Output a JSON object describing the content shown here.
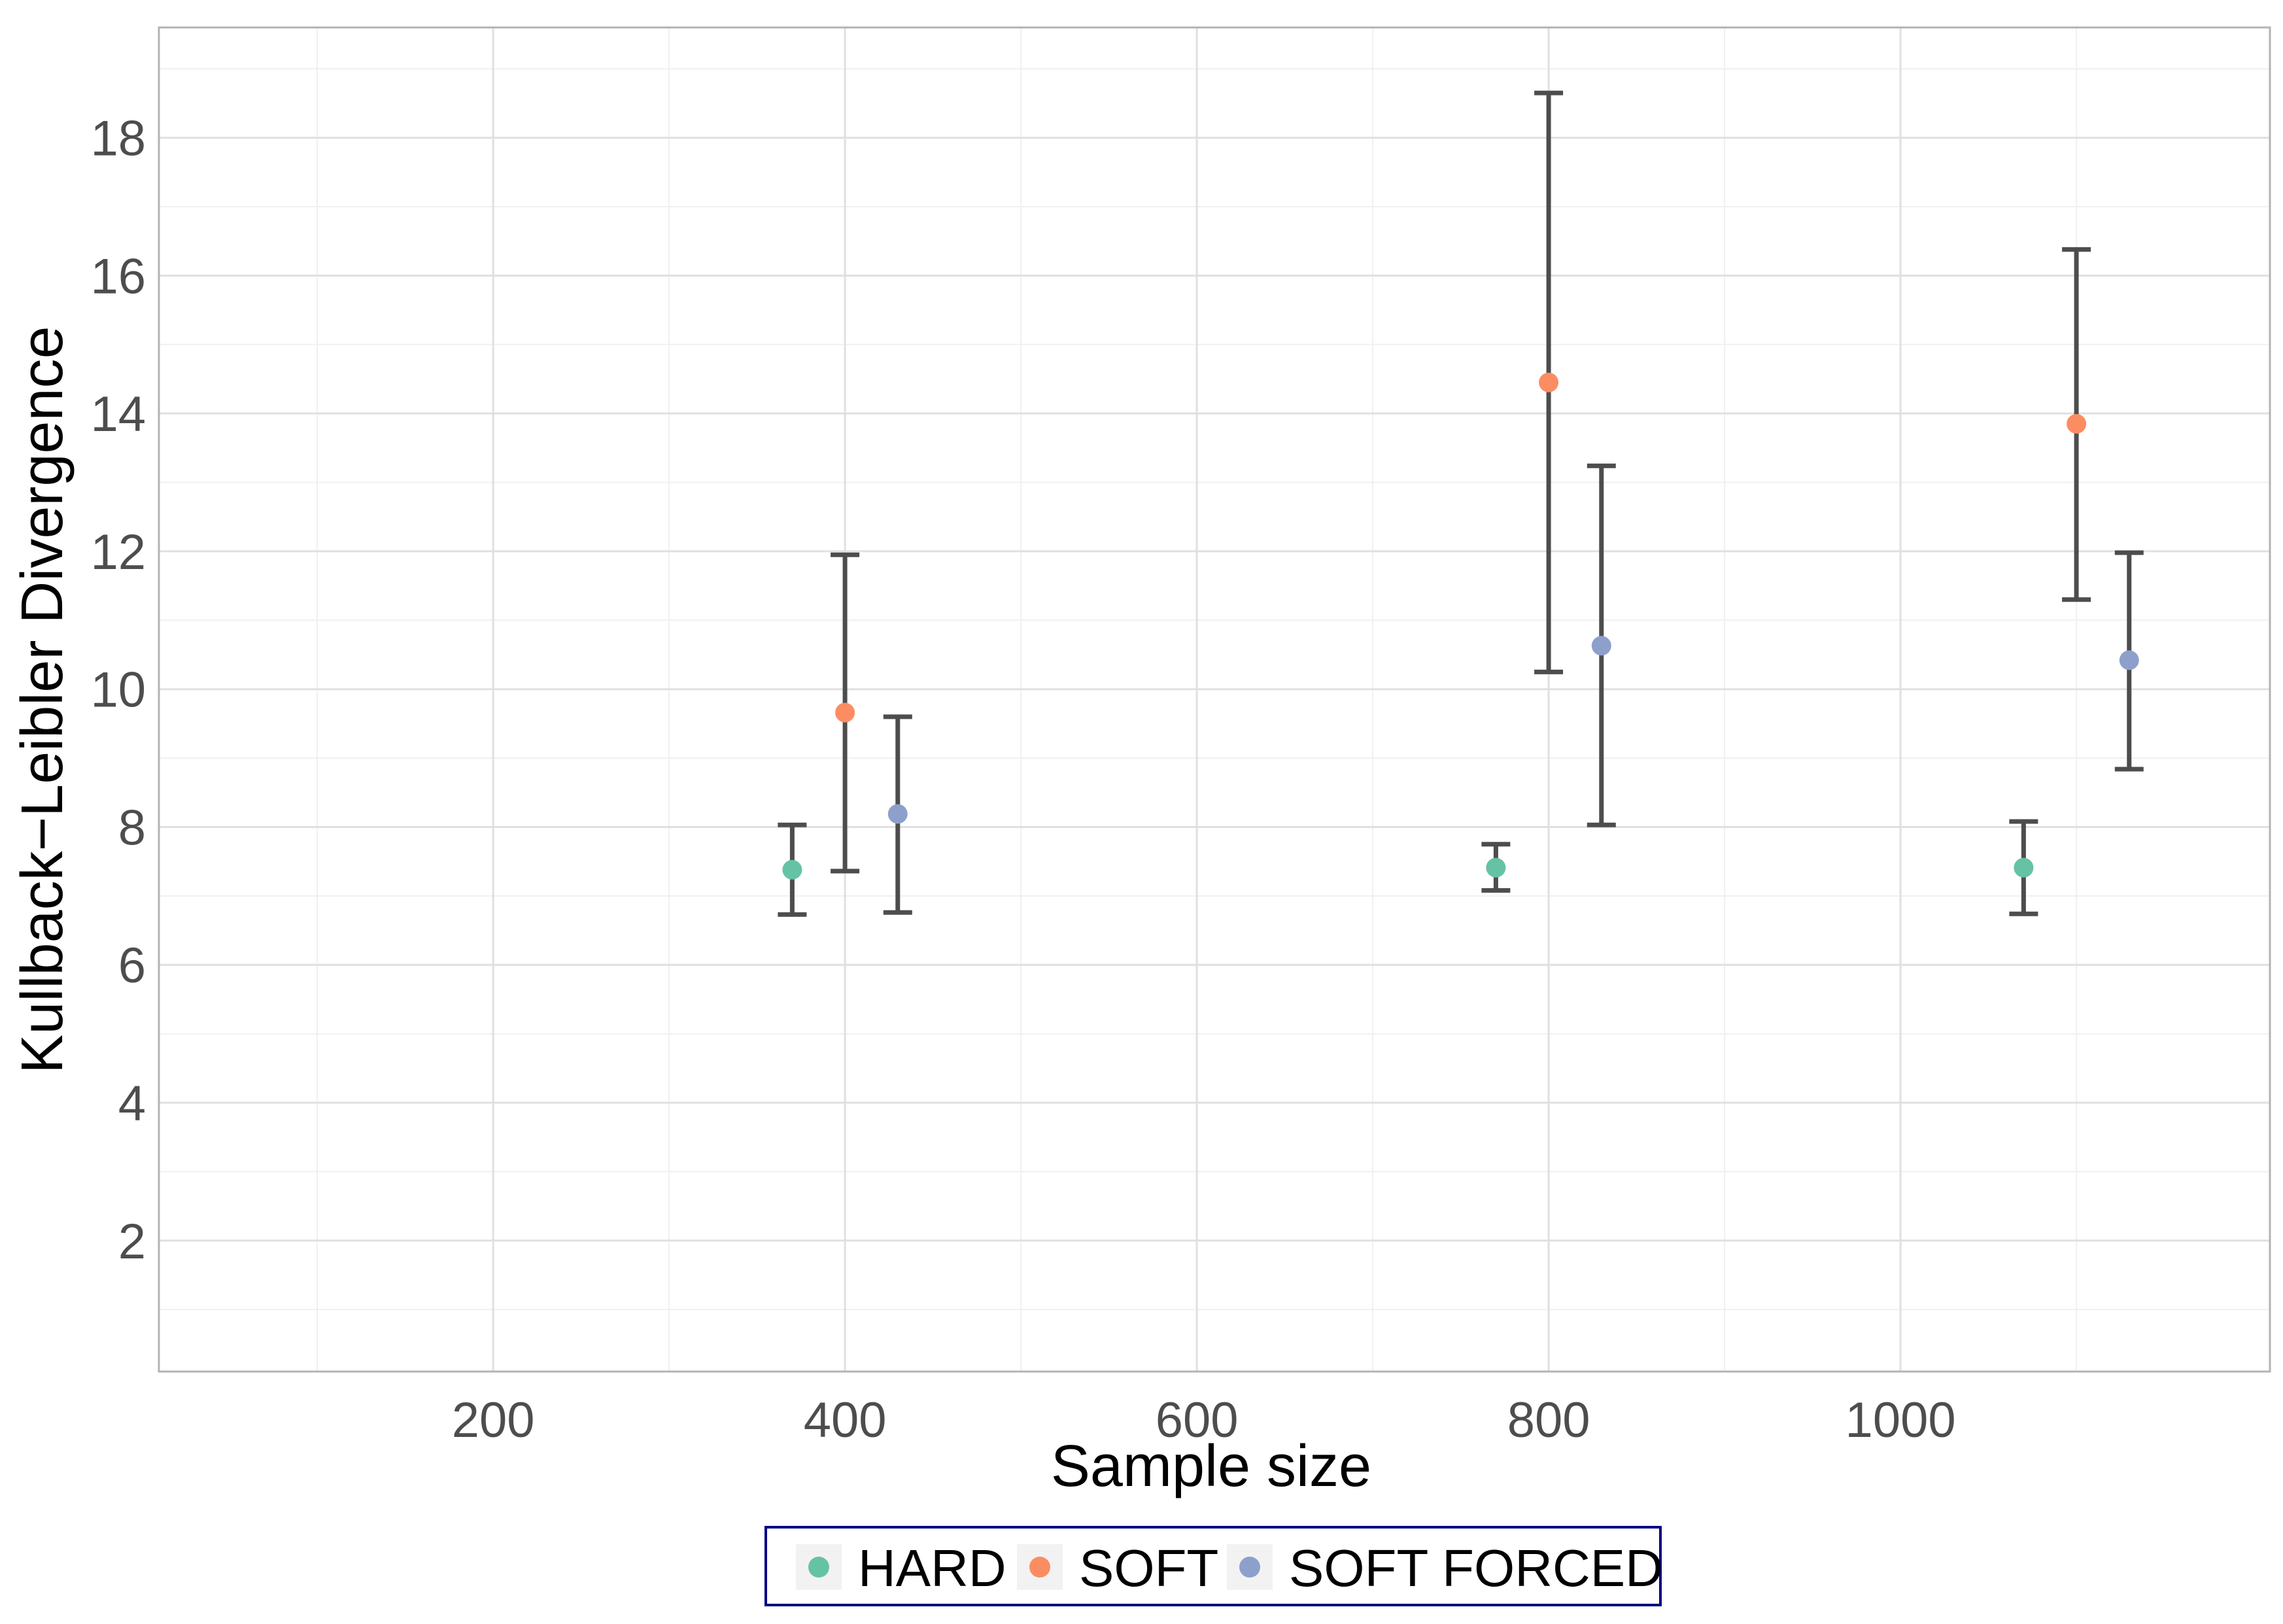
{
  "chart_data": {
    "type": "scatter",
    "title": "",
    "xlabel": "Sample size",
    "ylabel": "Kullback−Leibler Divergence",
    "xlim": [
      10,
      1210
    ],
    "ylim": [
      0.1,
      19.6
    ],
    "x_ticks": [
      200,
      400,
      600,
      800,
      1000
    ],
    "x_tick_labels": [
      "200",
      "400",
      "600",
      "800",
      "1000"
    ],
    "y_ticks": [
      2,
      4,
      6,
      8,
      10,
      12,
      14,
      16,
      18
    ],
    "y_tick_labels": [
      "2",
      "4",
      "6",
      "8",
      "10",
      "12",
      "14",
      "16",
      "18"
    ],
    "grid": true,
    "legend_position": "bottom",
    "series": [
      {
        "name": "HARD",
        "color": "#66c2a5",
        "x": [
          370,
          770,
          1070
        ],
        "y": [
          7.38,
          7.41,
          7.41
        ],
        "ymin": [
          6.73,
          7.08,
          6.74
        ],
        "ymax": [
          8.03,
          7.75,
          8.08
        ]
      },
      {
        "name": "SOFT",
        "color": "#fc8d62",
        "x": [
          400,
          800,
          1100
        ],
        "y": [
          9.66,
          14.45,
          13.85
        ],
        "ymin": [
          7.36,
          10.25,
          11.3
        ],
        "ymax": [
          11.95,
          18.65,
          16.38
        ]
      },
      {
        "name": "SOFT FORCED",
        "color": "#8da0cb",
        "x": [
          430,
          830,
          1130
        ],
        "y": [
          8.19,
          10.63,
          10.42
        ],
        "ymin": [
          6.76,
          8.03,
          8.84
        ],
        "ymax": [
          9.6,
          13.24,
          11.98
        ]
      }
    ]
  },
  "colors": {
    "panel_border": "#b3b3b3",
    "grid_major": "#e0e0e0",
    "grid_minor": "#f0f0f0",
    "errorbar": "#4d4d4d",
    "legend_border": "#000080"
  }
}
